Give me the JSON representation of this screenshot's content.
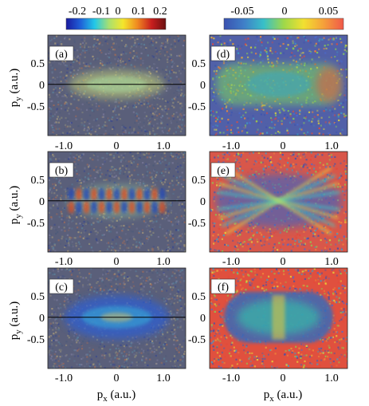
{
  "colorbars": [
    {
      "ticks": [
        "-0.2",
        "-0.1",
        "0",
        "0.1",
        "0.2"
      ],
      "stops": [
        "#1a1aa0",
        "#1f5fd8",
        "#22c8e8",
        "#a8e070",
        "#f4e62c",
        "#f08a20",
        "#c81e1e",
        "#6a1010"
      ]
    },
    {
      "ticks": [
        "-0.05",
        "0",
        "0.05"
      ],
      "stops": [
        "#3a52b0",
        "#3f7fc8",
        "#38c0c8",
        "#9ed84a",
        "#f2e030",
        "#f5a03a",
        "#f0584a"
      ]
    }
  ],
  "panels": [
    {
      "label": "(a)",
      "column": 0,
      "row": 0,
      "show_x_ticks": false,
      "background": "#5a5f7a",
      "pattern": "weak-center"
    },
    {
      "label": "(b)",
      "column": 0,
      "row": 1,
      "show_x_ticks": true,
      "background": "#5a5f7a",
      "pattern": "fringes"
    },
    {
      "label": "(c)",
      "column": 0,
      "row": 2,
      "show_x_ticks": true,
      "background": "#5a5f7a",
      "pattern": "blue-blob"
    },
    {
      "label": "(d)",
      "column": 1,
      "row": 0,
      "show_x_ticks": true,
      "background": "#5160a8",
      "pattern": "green-band"
    },
    {
      "label": "(e)",
      "column": 1,
      "row": 1,
      "show_x_ticks": true,
      "background": "#d8574a",
      "pattern": "star-rays"
    },
    {
      "label": "(f)",
      "column": 1,
      "row": 2,
      "show_x_ticks": true,
      "background": "#e0503e",
      "pattern": "capsule"
    }
  ],
  "y_ticks": [
    "0.5",
    "0",
    "-0.5"
  ],
  "x_ticks": [
    "-1.0",
    "0",
    "1.0"
  ],
  "axis_labels": {
    "y_main": "p",
    "y_sub": "y",
    "y_unit": " (a.u.)",
    "x_main": "p",
    "x_sub": "x",
    "x_unit": " (a.u.)"
  }
}
